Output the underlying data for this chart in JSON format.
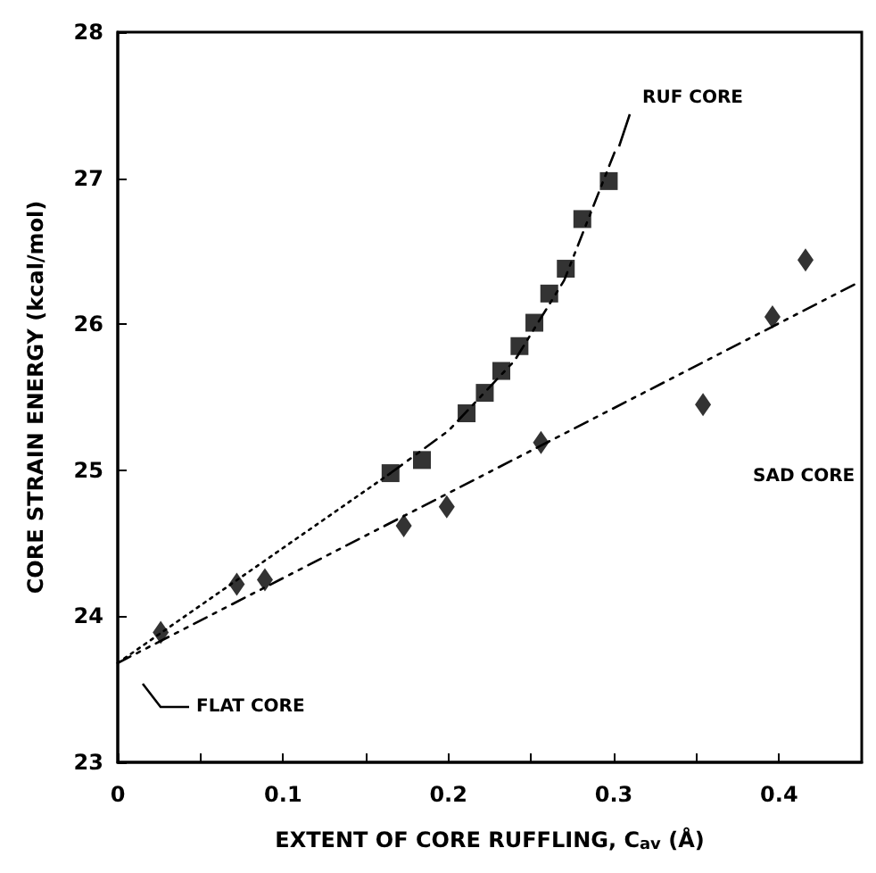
{
  "chart_data": {
    "type": "scatter",
    "xlabel": "EXTENT OF CORE RUFFLING, C$_{av}$ (Å)",
    "ylabel": "CORE STRAIN ENERGY (kcal/mol)",
    "xlim": [
      0,
      0.45
    ],
    "ylim": [
      23,
      28
    ],
    "xticks": [
      0,
      {
        "value": 0.05,
        "label": null
      },
      0.1,
      {
        "value": 0.15,
        "label": null
      },
      0.2,
      {
        "value": 0.25,
        "label": null
      },
      0.3,
      {
        "value": 0.35,
        "label": null
      },
      0.4
    ],
    "yticks": [
      23,
      24,
      25,
      26,
      27,
      28
    ],
    "grid": false,
    "series": [
      {
        "marker": "square",
        "color": "#000000",
        "x": [
          0.165,
          0.184,
          0.211,
          0.222,
          0.232,
          0.243,
          0.252,
          0.261,
          0.271,
          0.281,
          0.297
        ],
        "values": [
          24.98,
          25.07,
          25.39,
          25.53,
          25.68,
          25.85,
          26.01,
          26.21,
          26.38,
          26.72,
          26.98
        ]
      },
      {
        "marker": "diamond",
        "color": "#000000",
        "x": [
          0.026,
          0.072,
          0.089,
          0.173,
          0.199,
          0.256,
          0.354,
          0.396,
          0.416
        ],
        "values": [
          23.89,
          24.22,
          24.25,
          24.62,
          24.75,
          25.19,
          25.45,
          26.05,
          26.44
        ]
      },
      {
        "type": "line",
        "marker": "none",
        "line_style": "dotted",
        "color": "#000000",
        "x": [
          0,
          0.165
        ],
        "values": [
          23.68,
          24.98
        ]
      },
      {
        "type": "line",
        "marker": "none",
        "line_style": "dashed",
        "color": "#000000",
        "x": [
          0.165,
          0.2,
          0.24,
          0.27,
          0.302
        ],
        "values": [
          24.98,
          25.27,
          25.75,
          26.3,
          27.22
        ]
      },
      {
        "type": "line",
        "marker": "none",
        "line_style": "dashed",
        "color": "#000000",
        "x": [
          0,
          0.447
        ],
        "values": [
          23.68,
          26.28
        ]
      }
    ],
    "annotations": [
      "RUF CORE",
      "SAD CORE",
      "FLAT CORE"
    ]
  }
}
